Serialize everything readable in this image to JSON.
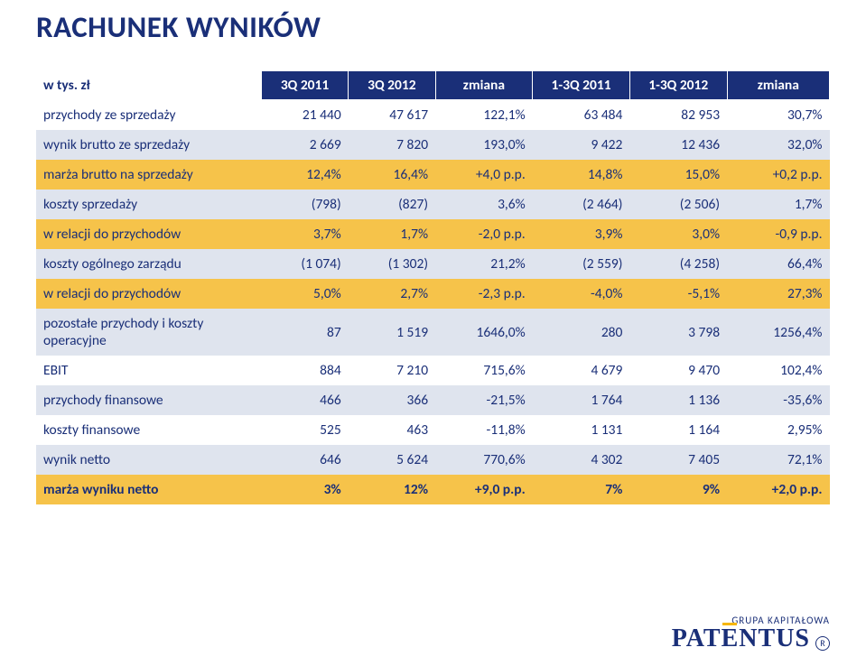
{
  "title": "RACHUNEK WYNIKÓW",
  "header": {
    "rowlabel": "w tys. zł",
    "cols": [
      "3Q 2011",
      "3Q 2012",
      "zmiana",
      "1-3Q 2011",
      "1-3Q 2012",
      "zmiana"
    ]
  },
  "rows": [
    {
      "style": "plain",
      "label": "przychody ze sprzedaży",
      "cells": [
        "21 440",
        "47 617",
        "122,1%",
        "63 484",
        "82 953",
        "30,7%"
      ]
    },
    {
      "style": "alt",
      "label": "wynik brutto ze sprzedaży",
      "cells": [
        "2 669",
        "7 820",
        "193,0%",
        "9 422",
        "12 436",
        "32,0%"
      ]
    },
    {
      "style": "highlight",
      "label": "marża brutto na sprzedaży",
      "cells": [
        "12,4%",
        "16,4%",
        "+4,0 p.p.",
        "14,8%",
        "15,0%",
        "+0,2 p.p."
      ]
    },
    {
      "style": "alt",
      "label": "koszty sprzedaży",
      "cells": [
        "(798)",
        "(827)",
        "3,6%",
        "(2 464)",
        "(2 506)",
        "1,7%"
      ]
    },
    {
      "style": "highlight",
      "label": "w relacji do przychodów",
      "cells": [
        "3,7%",
        "1,7%",
        "-2,0 p.p.",
        "3,9%",
        "3,0%",
        "-0,9 p.p."
      ]
    },
    {
      "style": "alt",
      "label": "koszty ogólnego zarządu",
      "cells": [
        "(1 074)",
        "(1 302)",
        "21,2%",
        "(2 559)",
        "(4 258)",
        "66,4%"
      ]
    },
    {
      "style": "highlight",
      "label": "w relacji do przychodów",
      "cells": [
        "5,0%",
        "2,7%",
        "-2,3 p.p.",
        "-4,0%",
        "-5,1%",
        "27,3%"
      ]
    },
    {
      "style": "alt",
      "label": "pozostałe przychody i koszty operacyjne",
      "cells": [
        "87",
        "1 519",
        "1646,0%",
        "280",
        "3 798",
        "1256,4%"
      ]
    },
    {
      "style": "plain",
      "label": "EBIT",
      "cells": [
        "884",
        "7 210",
        "715,6%",
        "4 679",
        "9 470",
        "102,4%"
      ]
    },
    {
      "style": "alt",
      "label": "przychody finansowe",
      "cells": [
        "466",
        "366",
        "-21,5%",
        "1 764",
        "1 136",
        "-35,6%"
      ]
    },
    {
      "style": "plain",
      "label": "koszty finansowe",
      "cells": [
        "525",
        "463",
        "-11,8%",
        "1 131",
        "1 164",
        "2,95%"
      ]
    },
    {
      "style": "alt",
      "label": "wynik netto",
      "cells": [
        "646",
        "5 624",
        "770,6%",
        "4 302",
        "7 405",
        "72,1%"
      ]
    },
    {
      "style": "highlight-bold",
      "label": "marża wyniku netto",
      "cells": [
        "3%",
        "12%",
        "+9,0 p.p.",
        "7%",
        "9%",
        "+2,0 p.p."
      ]
    }
  ],
  "footer": {
    "line1": "GRUPA KAPITAŁOWA",
    "brand": "PATENTUS",
    "reg": "R"
  },
  "colors": {
    "header_bg": "#1a2f78",
    "header_fg": "#ffffff",
    "text": "#1a2f78",
    "alt_bg": "#dfe4ee",
    "highlight_bg": "#f6c34a",
    "page_bg": "#ffffff"
  }
}
